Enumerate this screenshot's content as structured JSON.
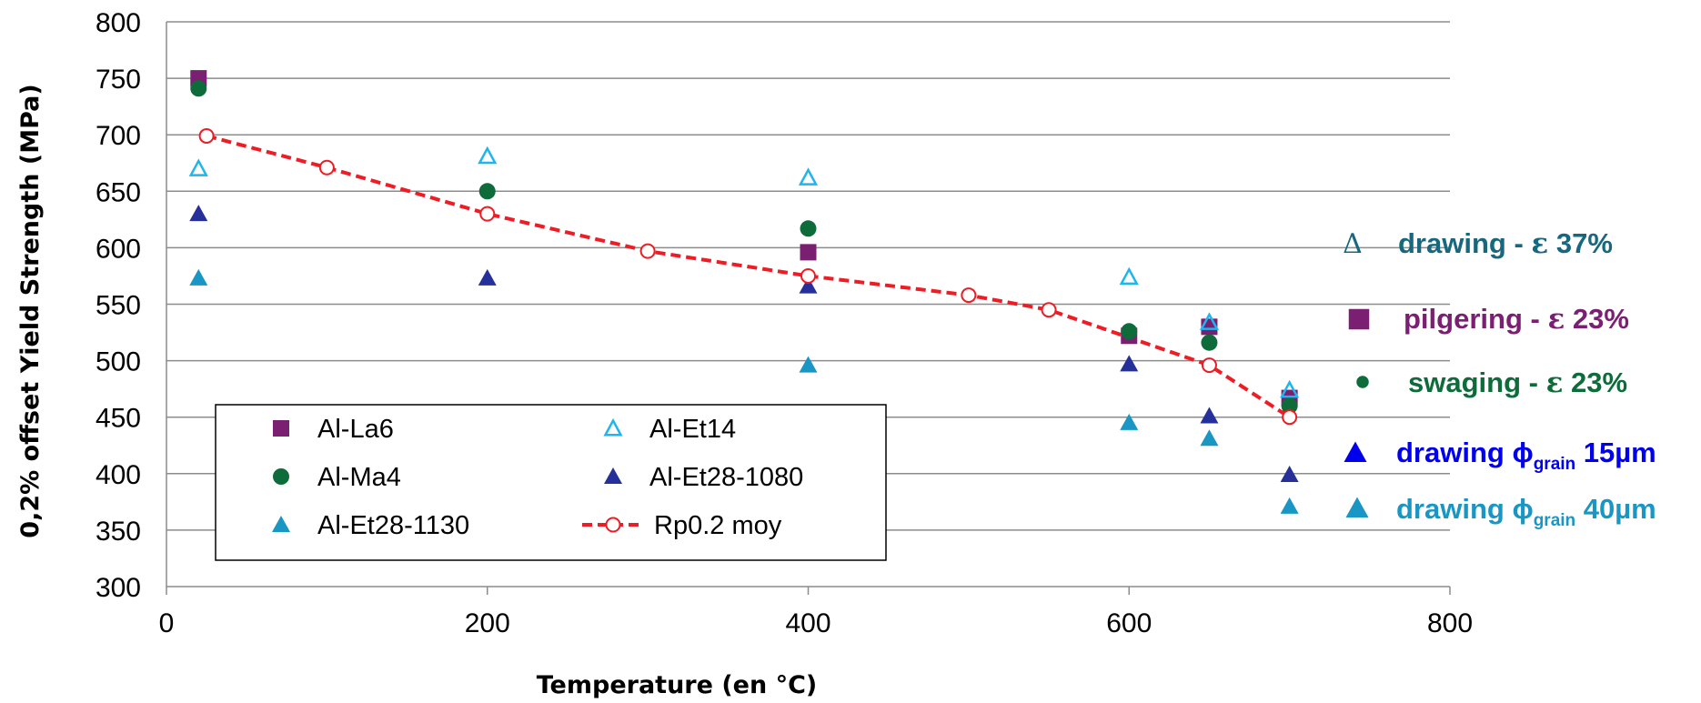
{
  "chart_data": {
    "type": "scatter",
    "xlabel": "Temperature (en °C)",
    "ylabel": "0,2% offset Yield Strength (MPa)",
    "xlim": [
      0,
      800
    ],
    "ylim": [
      300,
      800
    ],
    "x_ticks": [
      "0",
      "200",
      "400",
      "600",
      "800"
    ],
    "y_ticks": [
      "300",
      "350",
      "400",
      "450",
      "500",
      "550",
      "600",
      "650",
      "700",
      "750",
      "800"
    ],
    "grid": "horizontal",
    "legend_position": "bottom-left",
    "series": [
      {
        "name": "Al-La6",
        "marker": "square",
        "color": "#7b1f72",
        "points": [
          [
            20,
            750
          ],
          [
            400,
            596
          ],
          [
            600,
            522
          ],
          [
            650,
            530
          ],
          [
            700,
            467
          ]
        ]
      },
      {
        "name": "Al-Et14",
        "marker": "triangle-open",
        "color": "#1fb5ee",
        "points": [
          [
            20,
            670
          ],
          [
            200,
            681
          ],
          [
            400,
            662
          ],
          [
            600,
            574
          ],
          [
            650,
            534
          ],
          [
            700,
            474
          ]
        ]
      },
      {
        "name": "Al-Ma4",
        "marker": "circle",
        "color": "#0e6b3a",
        "points": [
          [
            20,
            741
          ],
          [
            200,
            650
          ],
          [
            400,
            617
          ],
          [
            600,
            526
          ],
          [
            650,
            516
          ],
          [
            700,
            460
          ]
        ]
      },
      {
        "name": "Al-Et28-1080",
        "marker": "triangle",
        "color": "#25309a",
        "points": [
          [
            20,
            630
          ],
          [
            200,
            573
          ],
          [
            400,
            566
          ],
          [
            600,
            497
          ],
          [
            650,
            451
          ],
          [
            700,
            399
          ]
        ]
      },
      {
        "name": "Al-Et28-1130",
        "marker": "triangle",
        "color": "#1a96c4",
        "points": [
          [
            20,
            573
          ],
          [
            400,
            496
          ],
          [
            600,
            445
          ],
          [
            650,
            431
          ],
          [
            700,
            371
          ]
        ]
      },
      {
        "name": "Rp0.2 moy",
        "marker": "circle-open-line",
        "color": "#ee1c24",
        "points": [
          [
            25,
            699
          ],
          [
            100,
            671
          ],
          [
            200,
            630
          ],
          [
            300,
            597
          ],
          [
            400,
            575
          ],
          [
            500,
            558
          ],
          [
            550,
            545
          ],
          [
            650,
            496
          ],
          [
            700,
            450
          ]
        ]
      }
    ],
    "annotations": [
      {
        "marker": "triangle-open-outline",
        "symbol": "Δ",
        "color": "#17677e",
        "parts": [
          {
            "t": "drawing - "
          },
          {
            "t": "ε",
            "greek": true
          },
          {
            "t": " 37%"
          }
        ]
      },
      {
        "marker": "square",
        "color": "#7b1f72",
        "parts": [
          {
            "t": "pilgering - "
          },
          {
            "t": "ε",
            "greek": true
          },
          {
            "t": " 23%"
          }
        ]
      },
      {
        "marker": "circle",
        "color": "#0e6b3a",
        "parts": [
          {
            "t": "swaging  - "
          },
          {
            "t": "ε",
            "greek": true
          },
          {
            "t": " 23%"
          }
        ]
      },
      {
        "marker": "triangle",
        "color": "#0000ee",
        "parts": [
          {
            "t": "drawing "
          },
          {
            "t": "ϕ"
          },
          {
            "t": "grain",
            "sub": true
          },
          {
            "t": " 15µm"
          }
        ]
      },
      {
        "marker": "triangle",
        "color": "#1a96c4",
        "parts": [
          {
            "t": "drawing "
          },
          {
            "t": "ϕ"
          },
          {
            "t": "grain",
            "sub": true
          },
          {
            "t": " 40µm"
          }
        ]
      }
    ]
  }
}
